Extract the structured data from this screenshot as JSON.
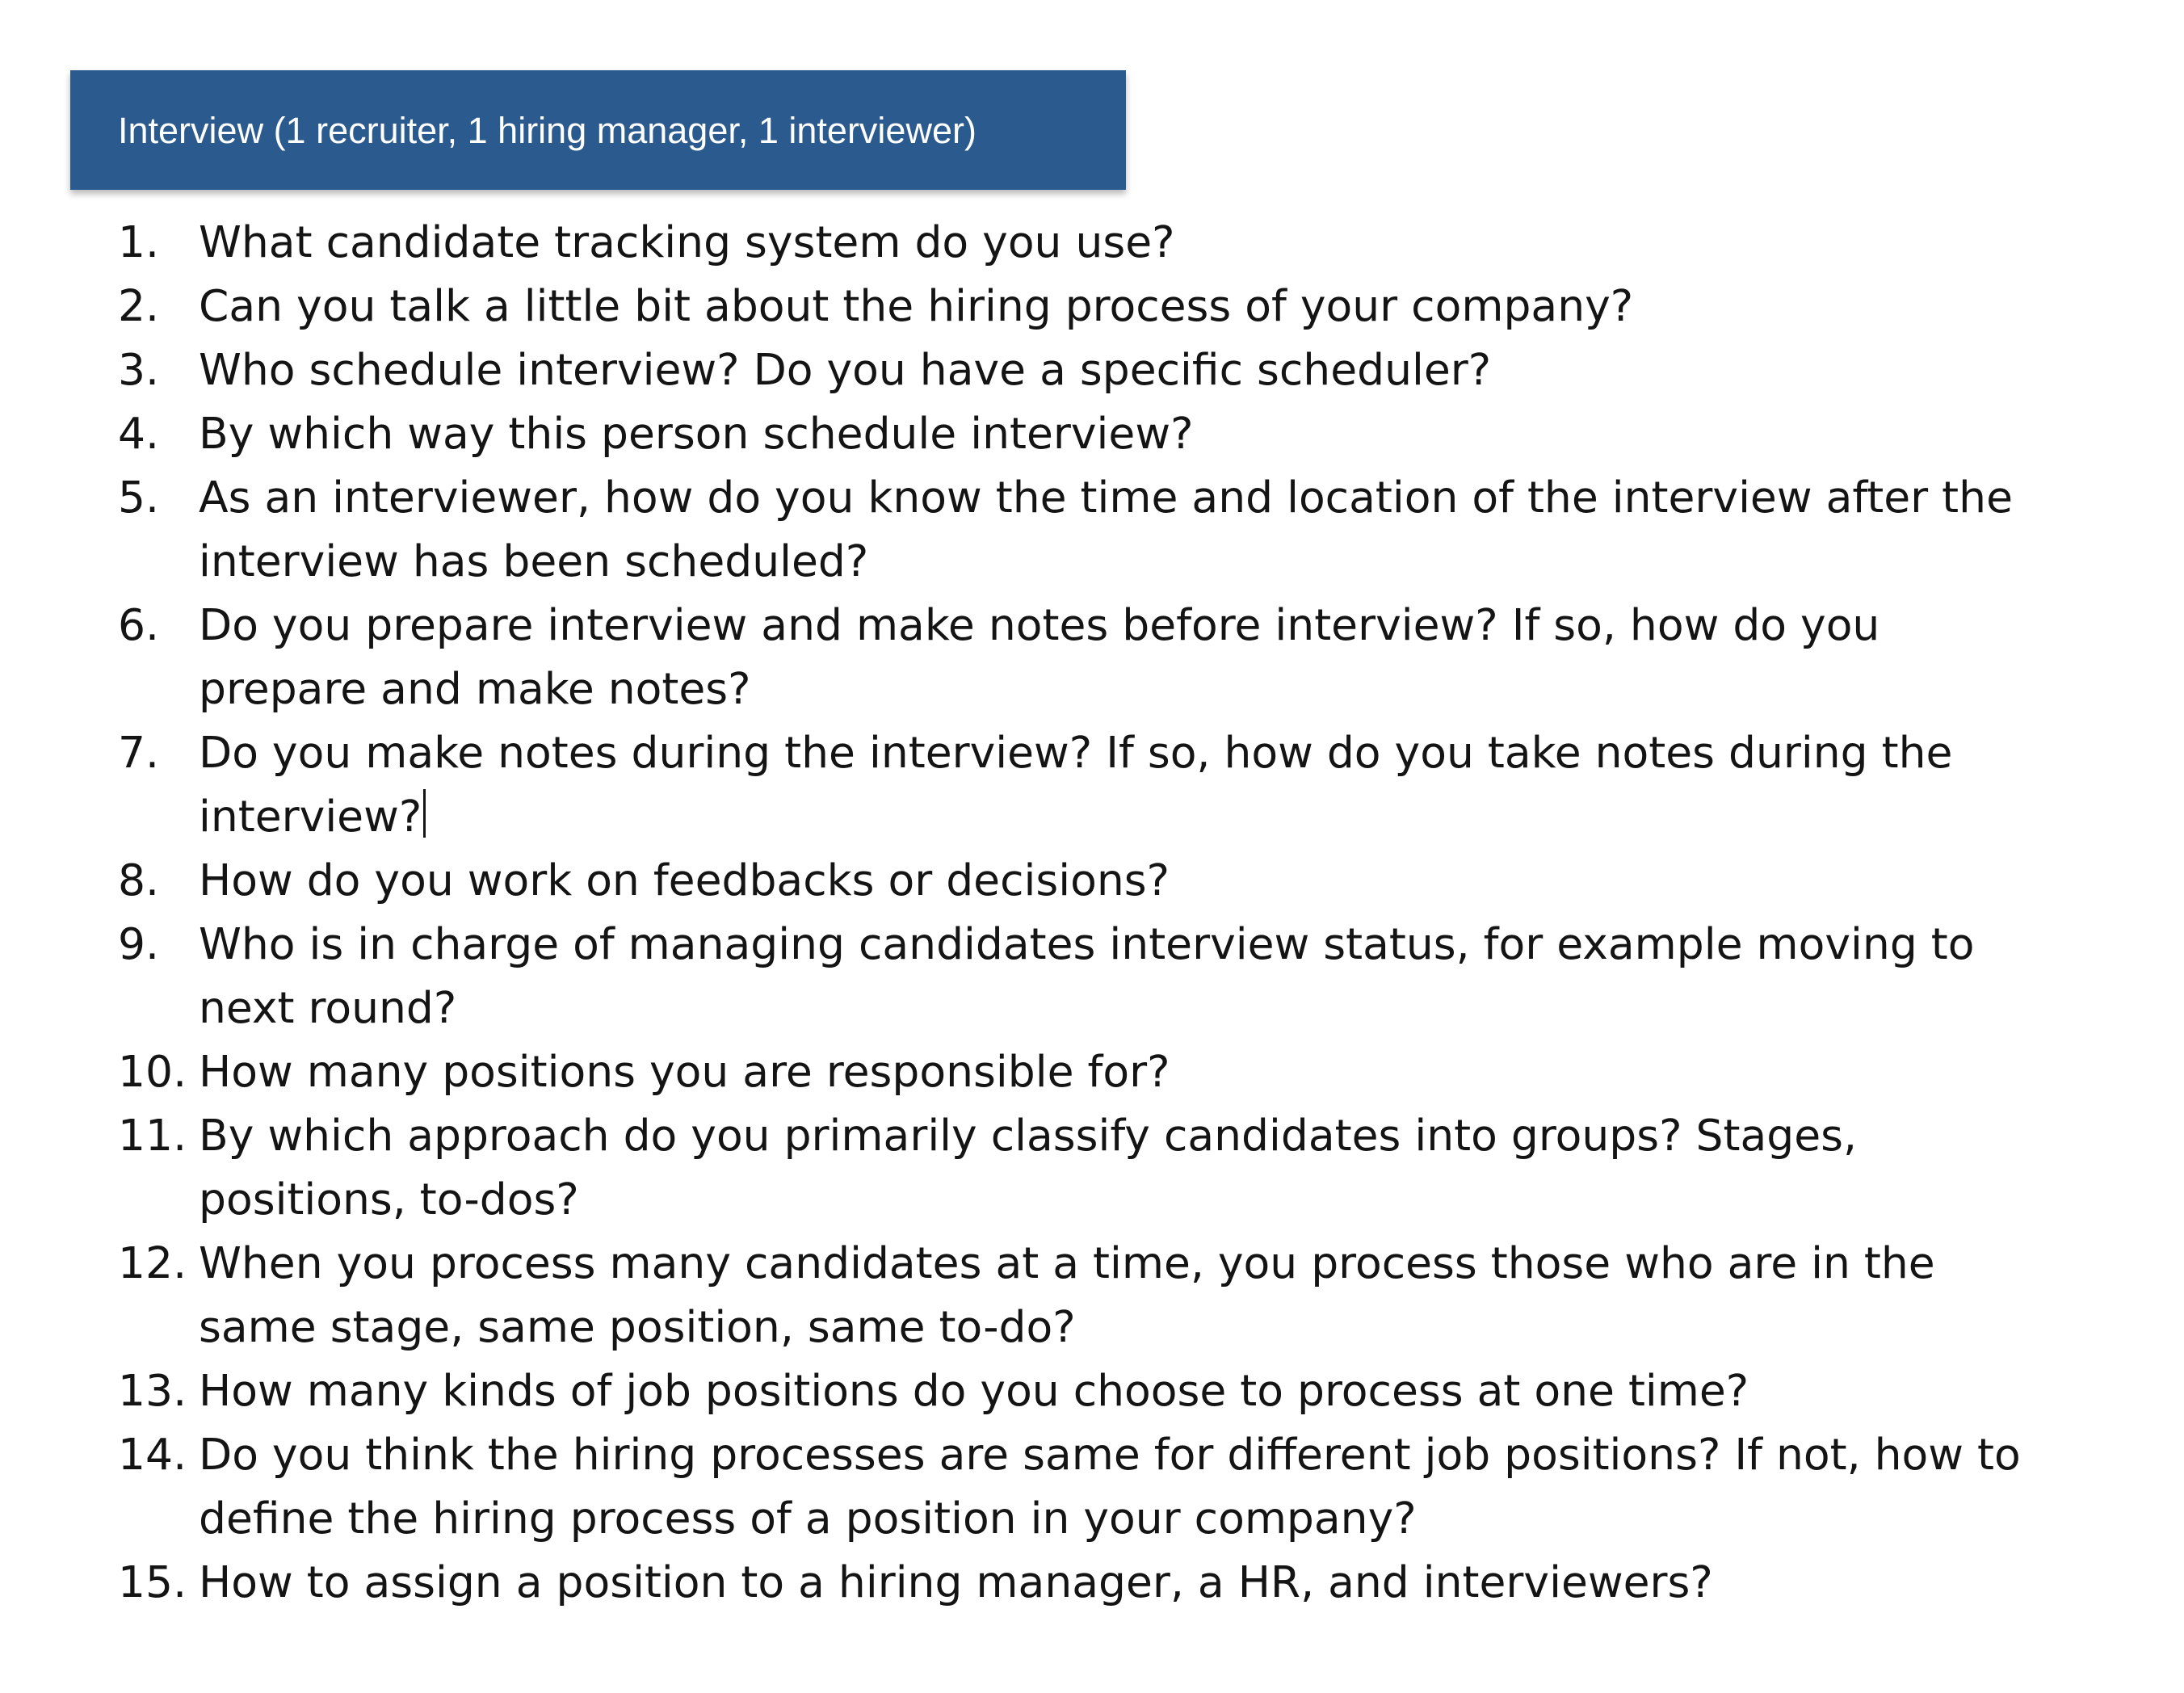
{
  "header": {
    "title": "Interview (1 recruiter, 1 hiring manager, 1 interviewer)"
  },
  "questions": [
    {
      "number": "1.",
      "line1": "What candidate tracking system do you use?",
      "line2": ""
    },
    {
      "number": "2.",
      "line1": "Can you talk a little bit about the hiring process of your company?",
      "line2": ""
    },
    {
      "number": "3.",
      "line1": "Who schedule interview? Do you have a specific scheduler?",
      "line2": ""
    },
    {
      "number": "4.",
      "line1": "By which way this person schedule interview?",
      "line2": ""
    },
    {
      "number": "5.",
      "line1": "As an interviewer, how do you know the time and location of the interview after the",
      "line2": "interview has been scheduled?"
    },
    {
      "number": "6.",
      "line1": "Do you prepare interview and make notes before interview? If so, how do you",
      "line2": "prepare and make notes?"
    },
    {
      "number": "7.",
      "line1": "Do you make notes during the interview? If so, how do you take notes during the",
      "line2": "interview?"
    },
    {
      "number": "8.",
      "line1": "How do you work on feedbacks or decisions?",
      "line2": ""
    },
    {
      "number": "9.",
      "line1": "Who is in charge of managing candidates interview status, for example moving to",
      "line2": "next round?"
    },
    {
      "number": "10.",
      "line1": "How many positions you are responsible for?",
      "line2": ""
    },
    {
      "number": "11.",
      "line1": "By which approach do you primarily classify candidates into groups? Stages,",
      "line2": "positions, to-dos?"
    },
    {
      "number": "12.",
      "line1": "When you process many candidates at a time, you process those who are in the",
      "line2": "same stage, same position, same to-do?"
    },
    {
      "number": "13.",
      "line1": "How many kinds of job positions do you choose to process at one time?",
      "line2": ""
    },
    {
      "number": "14.",
      "line1": "Do you think the hiring processes are same for different job positions? If not, how to",
      "line2": "define the hiring process of a position in your company?"
    },
    {
      "number": "15.",
      "line1": "How to assign a position to a hiring manager, a HR, and interviewers?",
      "line2": ""
    }
  ]
}
